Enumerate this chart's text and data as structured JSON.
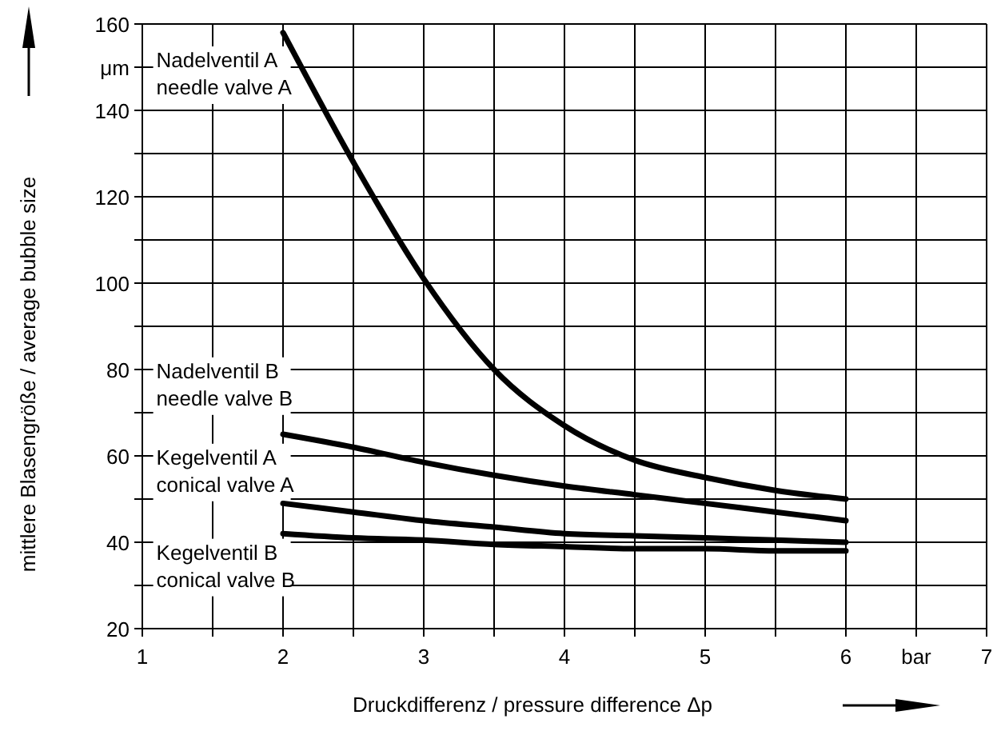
{
  "chart_data": {
    "type": "line",
    "xlabel": "Druckdifferenz / pressure difference   Δp",
    "ylabel": "mittlere Blasengröße / average bubble size",
    "x": [
      2,
      2.5,
      3,
      3.5,
      4,
      4.5,
      5,
      5.5,
      6
    ],
    "series": [
      {
        "name": "Nadelventil A\nneedle valve A",
        "color": "#000000",
        "values": [
          158,
          128,
          101,
          80,
          67,
          59,
          55,
          52,
          50
        ]
      },
      {
        "name": "Nadelventil B\nneedle valve B",
        "color": "#000000",
        "values": [
          65,
          62,
          58.5,
          55.5,
          53,
          51,
          49,
          47,
          45
        ]
      },
      {
        "name": "Kegelventil A\nconical valve A",
        "color": "#000000",
        "values": [
          49,
          47,
          45,
          43.5,
          42,
          41.5,
          41,
          40.5,
          40
        ]
      },
      {
        "name": "Kegelventil B\nconical valve B",
        "color": "#000000",
        "values": [
          42,
          41,
          40.5,
          39.5,
          39,
          38.5,
          38.5,
          38,
          38
        ]
      }
    ],
    "xlim": [
      1,
      7
    ],
    "ylim": [
      20,
      160
    ],
    "xticks": [
      1,
      {
        "value": 1.5,
        "label": null
      },
      2,
      {
        "value": 2.5,
        "label": null
      },
      3,
      {
        "value": 3.5,
        "label": null
      },
      4,
      {
        "value": 4.5,
        "label": null
      },
      5,
      {
        "value": 5.5,
        "label": null
      },
      6,
      {
        "value": 6.5,
        "label": "bar"
      },
      7
    ],
    "yticks": [
      20,
      {
        "value": 30,
        "label": null
      },
      40,
      {
        "value": 50,
        "label": null
      },
      60,
      {
        "value": 70,
        "label": null
      },
      80,
      {
        "value": 90,
        "label": null
      },
      100,
      {
        "value": 110,
        "label": null
      },
      120,
      {
        "value": 130,
        "label": null
      },
      140,
      {
        "value": 150,
        "label": "μm"
      },
      160
    ],
    "grid": true,
    "marker": "none",
    "line_style": "solid"
  }
}
